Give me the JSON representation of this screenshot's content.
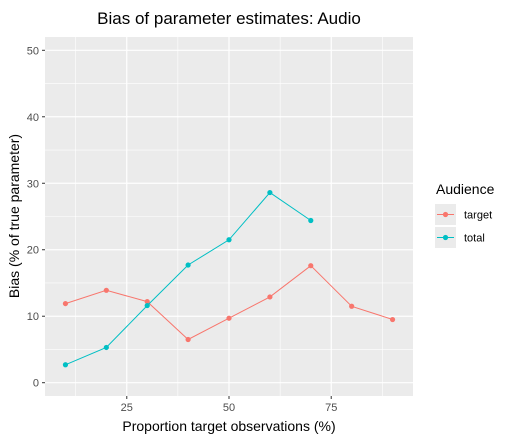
{
  "chart_data": {
    "type": "line",
    "title": "Bias of parameter estimates: Audio",
    "xlabel": "Proportion target observations (%)",
    "ylabel": "Bias (% of true parameter)",
    "xlim": [
      5,
      95
    ],
    "ylim": [
      -2,
      52
    ],
    "x_ticks": [
      25,
      50,
      75
    ],
    "y_ticks": [
      0,
      10,
      20,
      30,
      40,
      50
    ],
    "grid": true,
    "legend": {
      "title": "Audience",
      "position": "right"
    },
    "series": [
      {
        "name": "target",
        "color": "#F8766D",
        "x": [
          10,
          20,
          30,
          40,
          50,
          60,
          70,
          80,
          90
        ],
        "values": [
          11.9,
          13.9,
          12.2,
          6.5,
          9.7,
          12.9,
          17.6,
          11.5,
          9.5
        ]
      },
      {
        "name": "total",
        "color": "#00BFC4",
        "x": [
          10,
          20,
          30,
          40,
          50,
          60,
          70
        ],
        "values": [
          2.7,
          5.3,
          11.6,
          17.7,
          21.5,
          28.6,
          24.4
        ]
      }
    ]
  }
}
